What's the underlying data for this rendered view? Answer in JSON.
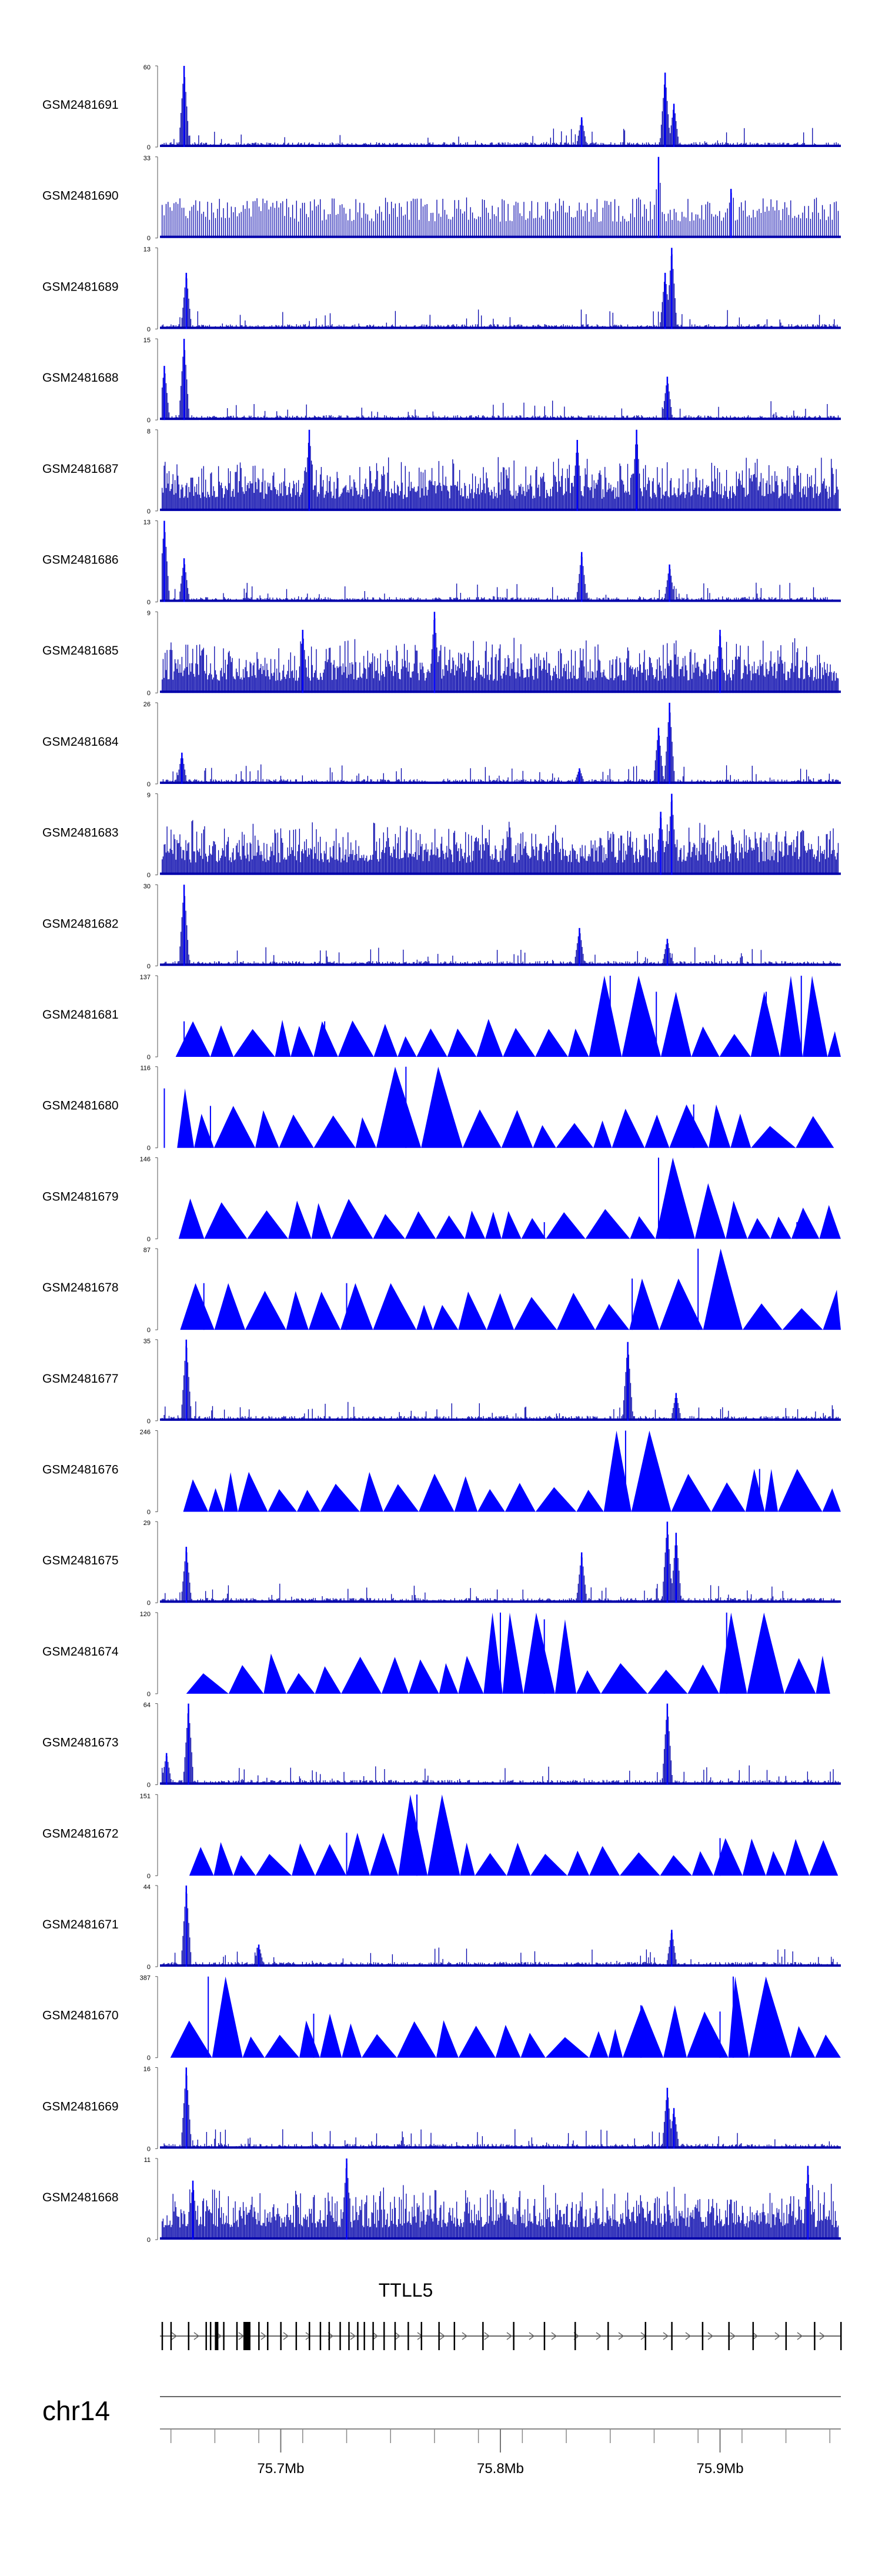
{
  "chart_data": {
    "type": "area",
    "title": "",
    "xlabel": "",
    "ylabel": "",
    "chromosome": "chr14",
    "gene": {
      "name": "TTLL5",
      "strand": "+"
    },
    "xlim": [
      75.645,
      75.955
    ],
    "x_unit": "Mb",
    "x_ticks": [
      {
        "value": 75.7,
        "label": "75.7Mb"
      },
      {
        "value": 75.8,
        "label": "75.8Mb"
      },
      {
        "value": 75.9,
        "label": "75.9Mb"
      }
    ],
    "tracks": [
      {
        "name": "GSM2481691",
        "ymax": 60,
        "ymax_label": "60",
        "style": "dense",
        "peaks": [
          [
            75.656,
            60
          ],
          [
            75.837,
            22
          ],
          [
            75.875,
            55
          ],
          [
            75.879,
            32
          ]
        ]
      },
      {
        "name": "GSM2481690",
        "ymax": 33,
        "ymax_label": "33",
        "style": "comb",
        "peaks": [
          [
            75.872,
            33
          ],
          [
            75.905,
            20
          ]
        ]
      },
      {
        "name": "GSM2481689",
        "ymax": 13,
        "ymax_label": "13",
        "style": "dense",
        "peaks": [
          [
            75.657,
            9
          ],
          [
            75.878,
            13
          ],
          [
            75.875,
            9
          ]
        ]
      },
      {
        "name": "GSM2481688",
        "ymax": 15,
        "ymax_label": "15",
        "style": "dense",
        "peaks": [
          [
            75.647,
            10
          ],
          [
            75.656,
            15
          ],
          [
            75.876,
            8
          ]
        ]
      },
      {
        "name": "GSM2481687",
        "ymax": 8,
        "ymax_label": "8",
        "style": "noisy",
        "peaks": [
          [
            75.713,
            8
          ],
          [
            75.862,
            8
          ],
          [
            75.835,
            7
          ]
        ]
      },
      {
        "name": "GSM2481686",
        "ymax": 13,
        "ymax_label": "13",
        "style": "dense",
        "peaks": [
          [
            75.647,
            13
          ],
          [
            75.656,
            7
          ],
          [
            75.837,
            8
          ],
          [
            75.877,
            6
          ]
        ]
      },
      {
        "name": "GSM2481685",
        "ymax": 9,
        "ymax_label": "9",
        "style": "noisy",
        "peaks": [
          [
            75.77,
            9
          ],
          [
            75.9,
            7
          ],
          [
            75.71,
            7
          ]
        ]
      },
      {
        "name": "GSM2481684",
        "ymax": 26,
        "ymax_label": "26",
        "style": "dense",
        "peaks": [
          [
            75.655,
            10
          ],
          [
            75.877,
            26
          ],
          [
            75.872,
            18
          ],
          [
            75.836,
            5
          ]
        ]
      },
      {
        "name": "GSM2481683",
        "ymax": 9,
        "ymax_label": "9",
        "style": "noisy",
        "peaks": [
          [
            75.878,
            9
          ],
          [
            75.873,
            7
          ]
        ]
      },
      {
        "name": "GSM2481682",
        "ymax": 30,
        "ymax_label": "30",
        "style": "dense",
        "peaks": [
          [
            75.656,
            30
          ],
          [
            75.836,
            14
          ],
          [
            75.876,
            10
          ]
        ]
      },
      {
        "name": "GSM2481681",
        "ymax": 137,
        "ymax_label": "137",
        "style": "tri",
        "peaks": [
          [
            75.656,
            60
          ],
          [
            75.72,
            60
          ],
          [
            75.85,
            137
          ],
          [
            75.871,
            110
          ],
          [
            75.921,
            110
          ],
          [
            75.937,
            137
          ]
        ]
      },
      {
        "name": "GSM2481680",
        "ymax": 116,
        "ymax_label": "116",
        "style": "tri",
        "peaks": [
          [
            75.647,
            85
          ],
          [
            75.668,
            60
          ],
          [
            75.757,
            116
          ],
          [
            75.888,
            62
          ]
        ]
      },
      {
        "name": "GSM2481679",
        "ymax": 146,
        "ymax_label": "146",
        "style": "tri",
        "peaks": [
          [
            75.872,
            146
          ],
          [
            75.877,
            100
          ],
          [
            75.82,
            30
          ],
          [
            75.935,
            30
          ]
        ]
      },
      {
        "name": "GSM2481678",
        "ymax": 87,
        "ymax_label": "87",
        "style": "tri",
        "peaks": [
          [
            75.665,
            50
          ],
          [
            75.89,
            87
          ],
          [
            75.86,
            55
          ],
          [
            75.73,
            50
          ]
        ]
      },
      {
        "name": "GSM2481677",
        "ymax": 35,
        "ymax_label": "35",
        "style": "dense",
        "peaks": [
          [
            75.657,
            35
          ],
          [
            75.858,
            34
          ],
          [
            75.88,
            12
          ]
        ]
      },
      {
        "name": "GSM2481676",
        "ymax": 246,
        "ymax_label": "246",
        "style": "tri",
        "peaks": [
          [
            75.857,
            246
          ],
          [
            75.918,
            130
          ]
        ]
      },
      {
        "name": "GSM2481675",
        "ymax": 29,
        "ymax_label": "29",
        "style": "dense",
        "peaks": [
          [
            75.657,
            20
          ],
          [
            75.837,
            18
          ],
          [
            75.876,
            29
          ],
          [
            75.88,
            25
          ]
        ]
      },
      {
        "name": "GSM2481674",
        "ymax": 120,
        "ymax_label": "120",
        "style": "tri",
        "peaks": [
          [
            75.8,
            120
          ],
          [
            75.903,
            120
          ],
          [
            75.82,
            110
          ]
        ]
      },
      {
        "name": "GSM2481673",
        "ymax": 64,
        "ymax_label": "64",
        "style": "dense",
        "peaks": [
          [
            75.658,
            64
          ],
          [
            75.876,
            64
          ],
          [
            75.648,
            25
          ]
        ]
      },
      {
        "name": "GSM2481672",
        "ymax": 151,
        "ymax_label": "151",
        "style": "tri",
        "peaks": [
          [
            75.762,
            151
          ],
          [
            75.73,
            80
          ],
          [
            75.9,
            70
          ]
        ]
      },
      {
        "name": "GSM2481671",
        "ymax": 44,
        "ymax_label": "44",
        "style": "dense",
        "peaks": [
          [
            75.657,
            44
          ],
          [
            75.878,
            20
          ],
          [
            75.69,
            12
          ]
        ]
      },
      {
        "name": "GSM2481670",
        "ymax": 387,
        "ymax_label": "387",
        "style": "tri",
        "peaks": [
          [
            75.667,
            387
          ],
          [
            75.906,
            387
          ],
          [
            75.715,
            210
          ],
          [
            75.864,
            250
          ],
          [
            75.9,
            220
          ]
        ]
      },
      {
        "name": "GSM2481669",
        "ymax": 16,
        "ymax_label": "16",
        "style": "dense",
        "peaks": [
          [
            75.657,
            16
          ],
          [
            75.876,
            12
          ],
          [
            75.879,
            8
          ]
        ]
      },
      {
        "name": "GSM2481668",
        "ymax": 11,
        "ymax_label": "11",
        "style": "noisy",
        "peaks": [
          [
            75.73,
            11
          ],
          [
            75.94,
            10
          ],
          [
            75.66,
            8
          ]
        ]
      }
    ]
  },
  "colors": {
    "signal": "#0000ff",
    "signal_dark": "#0000aa",
    "gene": "#000000",
    "axis": "#555555",
    "text": "#000000"
  }
}
